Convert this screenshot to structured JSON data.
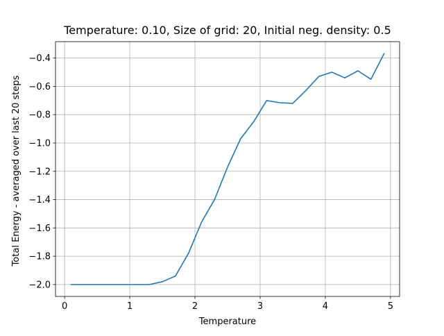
{
  "chart_data": {
    "type": "line",
    "title": "Temperature: 0.10, Size of grid: 20, Initial neg. density: 0.5",
    "xlabel": "Temperature",
    "ylabel": "Total Energy - averaged over last 20 steps",
    "xlim": [
      -0.14,
      5.14
    ],
    "ylim": [
      -2.084,
      -0.284
    ],
    "grid": true,
    "x_ticks": [
      0,
      1,
      2,
      3,
      4,
      5
    ],
    "x_tick_labels": [
      "0",
      "1",
      "2",
      "3",
      "4",
      "5"
    ],
    "y_ticks": [
      -2.0,
      -1.8,
      -1.6,
      -1.4,
      -1.2,
      -1.0,
      -0.8,
      -0.6,
      -0.4
    ],
    "y_tick_labels": [
      "−2.0",
      "−1.8",
      "−1.6",
      "−1.4",
      "−1.2",
      "−1.0",
      "−0.8",
      "−0.6",
      "−0.4"
    ],
    "series": [
      {
        "color": "#1f77b4",
        "x": [
          0.1,
          0.3,
          0.5,
          0.7,
          0.9,
          1.1,
          1.3,
          1.5,
          1.7,
          1.9,
          2.1,
          2.3,
          2.5,
          2.7,
          2.9,
          3.1,
          3.3,
          3.5,
          3.7,
          3.9,
          4.1,
          4.3,
          4.5,
          4.7,
          4.9
        ],
        "y": [
          -2.0,
          -2.0,
          -2.0,
          -2.0,
          -2.0,
          -2.0,
          -2.0,
          -1.98,
          -1.94,
          -1.78,
          -1.56,
          -1.4,
          -1.17,
          -0.97,
          -0.85,
          -0.7,
          -0.715,
          -0.72,
          -0.63,
          -0.53,
          -0.5,
          -0.54,
          -0.49,
          -0.55,
          -0.37
        ]
      }
    ]
  }
}
